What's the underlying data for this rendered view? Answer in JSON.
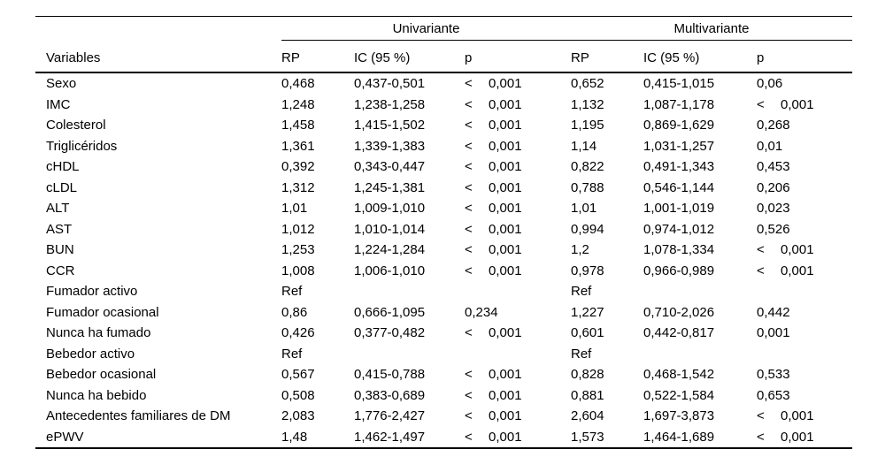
{
  "table": {
    "spanners": {
      "univariante": "Univariante",
      "multivariante": "Multivariante"
    },
    "columns": {
      "variables": "Variables",
      "uni": {
        "rp": "RP",
        "ic": "IC (95 %)",
        "p": "p"
      },
      "multi": {
        "rp": "RP",
        "ic": "IC (95 %)",
        "p": "p"
      }
    },
    "rows": [
      {
        "variable": "Sexo",
        "uni_rp": "0,468",
        "uni_ic": "0,437-0,501",
        "uni_p_sign": "<",
        "uni_p": "0,001",
        "multi_rp": "0,652",
        "multi_ic": "0,415-1,015",
        "multi_p_sign": "",
        "multi_p": "0,06"
      },
      {
        "variable": "IMC",
        "uni_rp": "1,248",
        "uni_ic": "1,238-1,258",
        "uni_p_sign": "<",
        "uni_p": "0,001",
        "multi_rp": "1,132",
        "multi_ic": "1,087-1,178",
        "multi_p_sign": "<",
        "multi_p": "0,001"
      },
      {
        "variable": "Colesterol",
        "uni_rp": "1,458",
        "uni_ic": "1,415-1,502",
        "uni_p_sign": "<",
        "uni_p": "0,001",
        "multi_rp": "1,195",
        "multi_ic": "0,869-1,629",
        "multi_p_sign": "",
        "multi_p": "0,268"
      },
      {
        "variable": "Triglicéridos",
        "uni_rp": "1,361",
        "uni_ic": "1,339-1,383",
        "uni_p_sign": "<",
        "uni_p": "0,001",
        "multi_rp": "1,14",
        "multi_ic": "1,031-1,257",
        "multi_p_sign": "",
        "multi_p": "0,01"
      },
      {
        "variable": "cHDL",
        "uni_rp": "0,392",
        "uni_ic": "0,343-0,447",
        "uni_p_sign": "<",
        "uni_p": "0,001",
        "multi_rp": "0,822",
        "multi_ic": "0,491-1,343",
        "multi_p_sign": "",
        "multi_p": "0,453"
      },
      {
        "variable": "cLDL",
        "uni_rp": "1,312",
        "uni_ic": "1,245-1,381",
        "uni_p_sign": "<",
        "uni_p": "0,001",
        "multi_rp": "0,788",
        "multi_ic": "0,546-1,144",
        "multi_p_sign": "",
        "multi_p": "0,206"
      },
      {
        "variable": "ALT",
        "uni_rp": "1,01",
        "uni_ic": "1,009-1,010",
        "uni_p_sign": "<",
        "uni_p": "0,001",
        "multi_rp": "1,01",
        "multi_ic": "1,001-1,019",
        "multi_p_sign": "",
        "multi_p": "0,023"
      },
      {
        "variable": "AST",
        "uni_rp": "1,012",
        "uni_ic": "1,010-1,014",
        "uni_p_sign": "<",
        "uni_p": "0,001",
        "multi_rp": "0,994",
        "multi_ic": "0,974-1,012",
        "multi_p_sign": "",
        "multi_p": "0,526"
      },
      {
        "variable": "BUN",
        "uni_rp": "1,253",
        "uni_ic": "1,224-1,284",
        "uni_p_sign": "<",
        "uni_p": "0,001",
        "multi_rp": "1,2",
        "multi_ic": "1,078-1,334",
        "multi_p_sign": "<",
        "multi_p": "0,001"
      },
      {
        "variable": "CCR",
        "uni_rp": "1,008",
        "uni_ic": "1,006-1,010",
        "uni_p_sign": "<",
        "uni_p": "0,001",
        "multi_rp": "0,978",
        "multi_ic": "0,966-0,989",
        "multi_p_sign": "<",
        "multi_p": "0,001"
      },
      {
        "variable": "Fumador activo",
        "uni_rp": "Ref",
        "uni_ic": "",
        "uni_p_sign": "",
        "uni_p": "",
        "multi_rp": "Ref",
        "multi_ic": "",
        "multi_p_sign": "",
        "multi_p": ""
      },
      {
        "variable": "Fumador ocasional",
        "uni_rp": "0,86",
        "uni_ic": "0,666-1,095",
        "uni_p_sign": "",
        "uni_p": "0,234",
        "multi_rp": "1,227",
        "multi_ic": "0,710-2,026",
        "multi_p_sign": "",
        "multi_p": "0,442"
      },
      {
        "variable": "Nunca ha fumado",
        "uni_rp": "0,426",
        "uni_ic": "0,377-0,482",
        "uni_p_sign": "<",
        "uni_p": "0,001",
        "multi_rp": "0,601",
        "multi_ic": "0,442-0,817",
        "multi_p_sign": "",
        "multi_p": "0,001"
      },
      {
        "variable": "Bebedor activo",
        "uni_rp": "Ref",
        "uni_ic": "",
        "uni_p_sign": "",
        "uni_p": "",
        "multi_rp": "Ref",
        "multi_ic": "",
        "multi_p_sign": "",
        "multi_p": ""
      },
      {
        "variable": "Bebedor ocasional",
        "uni_rp": "0,567",
        "uni_ic": "0,415-0,788",
        "uni_p_sign": "<",
        "uni_p": "0,001",
        "multi_rp": "0,828",
        "multi_ic": "0,468-1,542",
        "multi_p_sign": "",
        "multi_p": "0,533"
      },
      {
        "variable": "Nunca ha bebido",
        "uni_rp": "0,508",
        "uni_ic": "0,383-0,689",
        "uni_p_sign": "<",
        "uni_p": "0,001",
        "multi_rp": "0,881",
        "multi_ic": "0,522-1,584",
        "multi_p_sign": "",
        "multi_p": "0,653"
      },
      {
        "variable": "Antecedentes familiares de DM",
        "uni_rp": "2,083",
        "uni_ic": "1,776-2,427",
        "uni_p_sign": "<",
        "uni_p": "0,001",
        "multi_rp": "2,604",
        "multi_ic": "1,697-3,873",
        "multi_p_sign": "<",
        "multi_p": "0,001"
      },
      {
        "variable": "ePWV",
        "uni_rp": "1,48",
        "uni_ic": "1,462-1,497",
        "uni_p_sign": "<",
        "uni_p": "0,001",
        "multi_rp": "1,573",
        "multi_ic": "1,464-1,689",
        "multi_p_sign": "<",
        "multi_p": "0,001"
      }
    ]
  }
}
